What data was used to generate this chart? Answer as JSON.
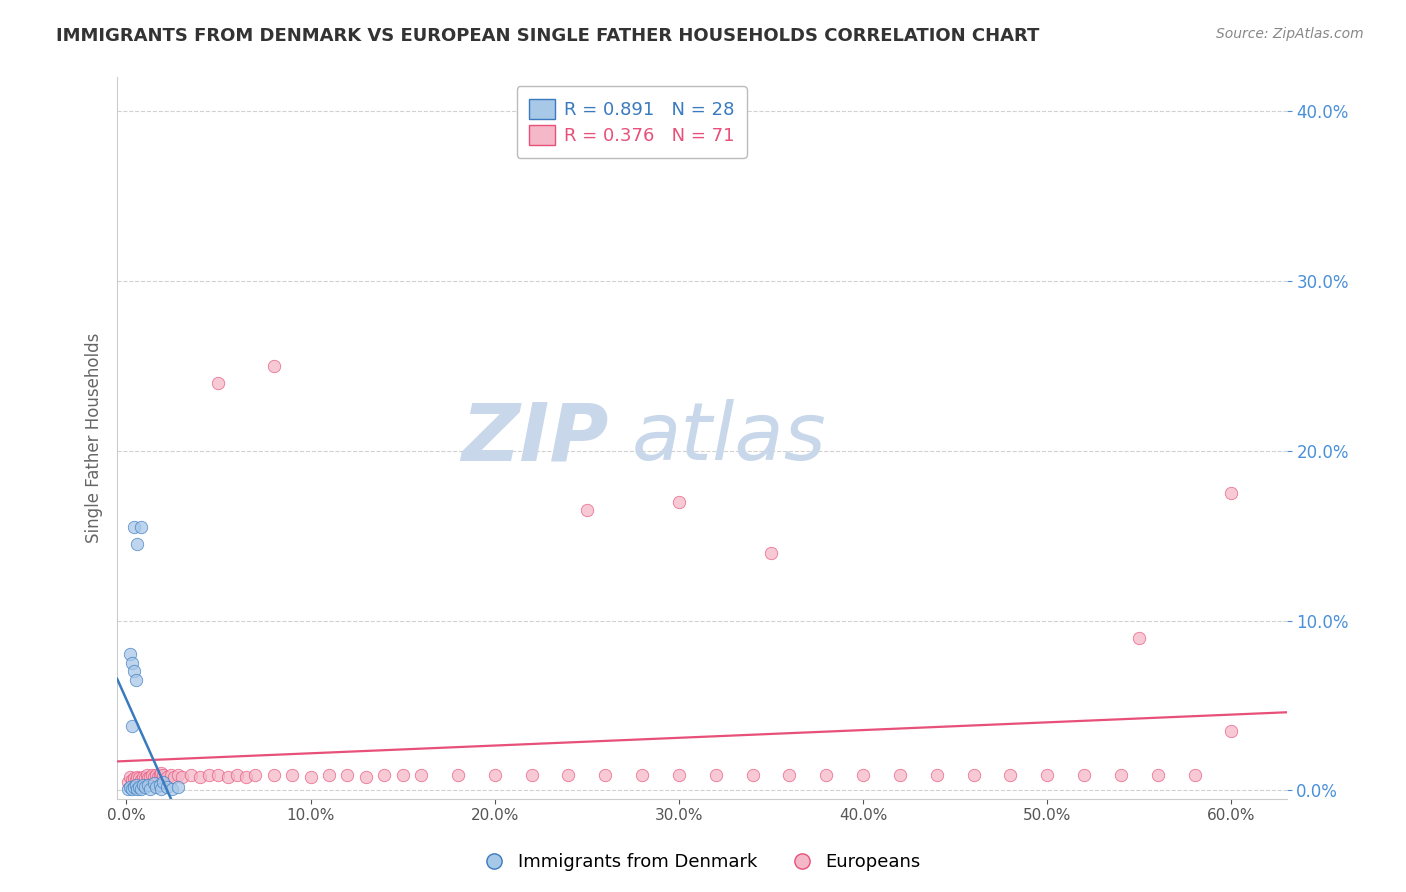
{
  "title": "IMMIGRANTS FROM DENMARK VS EUROPEAN SINGLE FATHER HOUSEHOLDS CORRELATION CHART",
  "source": "Source: ZipAtlas.com",
  "ylabel": "Single Father Households",
  "blue_label": "Immigrants from Denmark",
  "pink_label": "Europeans",
  "blue_R": 0.891,
  "blue_N": 28,
  "pink_R": 0.376,
  "pink_N": 71,
  "blue_color": "#a8c8e8",
  "pink_color": "#f4b8c8",
  "blue_line_color": "#3a7abf",
  "pink_line_color": "#e8507a",
  "blue_scatter": [
    [
      0.001,
      0.001
    ],
    [
      0.002,
      0.002
    ],
    [
      0.003,
      0.001
    ],
    [
      0.004,
      0.002
    ],
    [
      0.005,
      0.003
    ],
    [
      0.006,
      0.001
    ],
    [
      0.007,
      0.002
    ],
    [
      0.008,
      0.001
    ],
    [
      0.009,
      0.003
    ],
    [
      0.01,
      0.002
    ],
    [
      0.012,
      0.003
    ],
    [
      0.013,
      0.001
    ],
    [
      0.015,
      0.004
    ],
    [
      0.016,
      0.002
    ],
    [
      0.018,
      0.003
    ],
    [
      0.019,
      0.001
    ],
    [
      0.02,
      0.005
    ],
    [
      0.022,
      0.002
    ],
    [
      0.025,
      0.001
    ],
    [
      0.028,
      0.002
    ],
    [
      0.003,
      0.038
    ],
    [
      0.004,
      0.155
    ],
    [
      0.006,
      0.145
    ],
    [
      0.008,
      0.155
    ],
    [
      0.002,
      0.08
    ],
    [
      0.003,
      0.075
    ],
    [
      0.004,
      0.07
    ],
    [
      0.005,
      0.065
    ]
  ],
  "pink_scatter": [
    [
      0.001,
      0.005
    ],
    [
      0.002,
      0.008
    ],
    [
      0.003,
      0.006
    ],
    [
      0.004,
      0.007
    ],
    [
      0.005,
      0.006
    ],
    [
      0.006,
      0.008
    ],
    [
      0.007,
      0.007
    ],
    [
      0.008,
      0.006
    ],
    [
      0.009,
      0.008
    ],
    [
      0.01,
      0.007
    ],
    [
      0.011,
      0.009
    ],
    [
      0.012,
      0.007
    ],
    [
      0.013,
      0.008
    ],
    [
      0.014,
      0.009
    ],
    [
      0.015,
      0.008
    ],
    [
      0.016,
      0.009
    ],
    [
      0.017,
      0.008
    ],
    [
      0.018,
      0.009
    ],
    [
      0.019,
      0.01
    ],
    [
      0.02,
      0.009
    ],
    [
      0.022,
      0.008
    ],
    [
      0.024,
      0.009
    ],
    [
      0.026,
      0.008
    ],
    [
      0.028,
      0.009
    ],
    [
      0.03,
      0.008
    ],
    [
      0.035,
      0.009
    ],
    [
      0.04,
      0.008
    ],
    [
      0.045,
      0.009
    ],
    [
      0.05,
      0.009
    ],
    [
      0.055,
      0.008
    ],
    [
      0.06,
      0.009
    ],
    [
      0.065,
      0.008
    ],
    [
      0.07,
      0.009
    ],
    [
      0.08,
      0.009
    ],
    [
      0.09,
      0.009
    ],
    [
      0.1,
      0.008
    ],
    [
      0.11,
      0.009
    ],
    [
      0.12,
      0.009
    ],
    [
      0.13,
      0.008
    ],
    [
      0.14,
      0.009
    ],
    [
      0.15,
      0.009
    ],
    [
      0.16,
      0.009
    ],
    [
      0.18,
      0.009
    ],
    [
      0.2,
      0.009
    ],
    [
      0.22,
      0.009
    ],
    [
      0.24,
      0.009
    ],
    [
      0.26,
      0.009
    ],
    [
      0.28,
      0.009
    ],
    [
      0.3,
      0.009
    ],
    [
      0.32,
      0.009
    ],
    [
      0.34,
      0.009
    ],
    [
      0.36,
      0.009
    ],
    [
      0.38,
      0.009
    ],
    [
      0.4,
      0.009
    ],
    [
      0.42,
      0.009
    ],
    [
      0.44,
      0.009
    ],
    [
      0.46,
      0.009
    ],
    [
      0.48,
      0.009
    ],
    [
      0.5,
      0.009
    ],
    [
      0.52,
      0.009
    ],
    [
      0.54,
      0.009
    ],
    [
      0.56,
      0.009
    ],
    [
      0.58,
      0.009
    ],
    [
      0.05,
      0.24
    ],
    [
      0.08,
      0.25
    ],
    [
      0.25,
      0.165
    ],
    [
      0.3,
      0.17
    ],
    [
      0.35,
      0.14
    ],
    [
      0.6,
      0.175
    ],
    [
      0.55,
      0.09
    ],
    [
      0.6,
      0.035
    ]
  ],
  "xlim": [
    -0.005,
    0.63
  ],
  "ylim": [
    -0.005,
    0.42
  ],
  "xticks": [
    0.0,
    0.1,
    0.2,
    0.3,
    0.4,
    0.5,
    0.6
  ],
  "yticks": [
    0.0,
    0.1,
    0.2,
    0.3,
    0.4
  ],
  "yticklabels_right": true,
  "yticklabel_color": "#4a90d9",
  "xticklabel_color": "#555555",
  "background_color": "#ffffff",
  "watermark_text": "ZIP",
  "watermark_text2": "atlas",
  "watermark_color": "#c8d8ea"
}
